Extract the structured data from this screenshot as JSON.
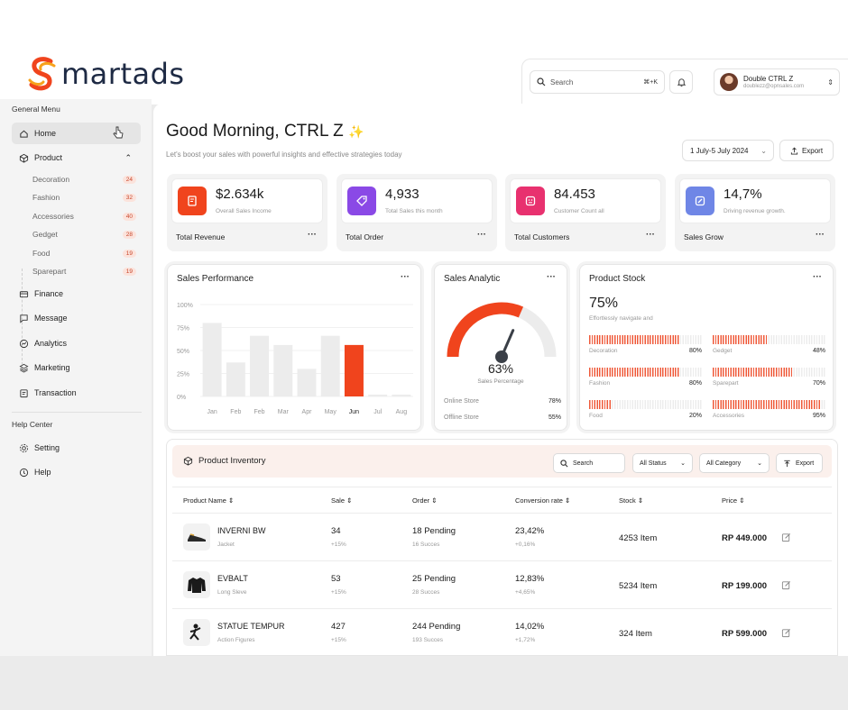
{
  "brand": {
    "logo_text": "martads"
  },
  "topbar": {
    "search_placeholder": "Search",
    "search_shortcut": "⌘+K",
    "user_name": "Double CTRL Z",
    "user_email": "doublezz@opnsales.com"
  },
  "sidebar": {
    "general_title": "General Menu",
    "items": [
      {
        "label": "Home"
      },
      {
        "label": "Product"
      },
      {
        "label": "Finance"
      },
      {
        "label": "Message"
      },
      {
        "label": "Analytics"
      },
      {
        "label": "Marketing"
      },
      {
        "label": "Transaction"
      }
    ],
    "product_sub": [
      {
        "label": "Decoration",
        "count": "24"
      },
      {
        "label": "Fashion",
        "count": "32"
      },
      {
        "label": "Accessories",
        "count": "40"
      },
      {
        "label": "Gedget",
        "count": "28"
      },
      {
        "label": "Food",
        "count": "19"
      },
      {
        "label": "Sparepart",
        "count": "19"
      }
    ],
    "help_title": "Help Center",
    "help_items": [
      {
        "label": "Setting"
      },
      {
        "label": "Help"
      }
    ]
  },
  "header": {
    "greeting": "Good Morning, CTRL Z",
    "sparkle": "✨",
    "subtitle": "Let's boost your sales with powerful insights and effective strategies today",
    "date_range": "1 July-5 July 2024",
    "export_label": "Export"
  },
  "kpis": [
    {
      "value": "$2.634k",
      "desc": "Overall Sales Income",
      "label": "Total Revenue",
      "color": "#f0441d"
    },
    {
      "value": "4,933",
      "desc": "Total Sales this month",
      "label": "Total Order",
      "color": "#8a49e6"
    },
    {
      "value": "84.453",
      "desc": "Customer Count all",
      "label": "Total Customers",
      "color": "#e8316f"
    },
    {
      "value": "14,7%",
      "desc": "Driving revenue growth.",
      "label": "Sales Grow",
      "color": "#6f86e6"
    }
  ],
  "sales_performance": {
    "title": "Sales Performance"
  },
  "chart_data": {
    "type": "bar",
    "categories": [
      "Jan",
      "Feb",
      "Feb",
      "Mar",
      "Apr",
      "May",
      "Jun",
      "Jul",
      "Aug"
    ],
    "values": [
      80,
      37,
      66,
      56,
      30,
      66,
      56,
      2,
      2
    ],
    "highlight_index": 6,
    "ylim": [
      0,
      100
    ],
    "yticks": [
      "100%",
      "75%",
      "50%",
      "25%",
      "0%"
    ],
    "grid": true,
    "colors": {
      "bar": "#ececec",
      "highlight": "#f0441d"
    }
  },
  "sales_analytic": {
    "title": "Sales Analytic",
    "percent": "63%",
    "percent_value": 63,
    "sub": "Sales Percentage",
    "rows": [
      {
        "label": "Online Store",
        "value": "78%"
      },
      {
        "label": "Offline Store",
        "value": "55%"
      }
    ]
  },
  "product_stock": {
    "title": "Product Stock",
    "big": "75%",
    "sub": "Effortlessly navigate and",
    "items": [
      {
        "label": "Decoration",
        "value": "80%",
        "fraction": 0.8
      },
      {
        "label": "Gedget",
        "value": "48%",
        "fraction": 0.48
      },
      {
        "label": "Fashion",
        "value": "80%",
        "fraction": 0.8
      },
      {
        "label": "Sparepart",
        "value": "70%",
        "fraction": 0.7
      },
      {
        "label": "Food",
        "value": "20%",
        "fraction": 0.2
      },
      {
        "label": "Accessories",
        "value": "95%",
        "fraction": 0.95
      }
    ]
  },
  "inventory": {
    "title": "Product Inventory",
    "search": "Search",
    "status": "All Status",
    "category": "All Category",
    "export": "Export",
    "columns": [
      "Product Name",
      "Sale",
      "Order",
      "Conversion rate",
      "Stock",
      "Price"
    ],
    "rows": [
      {
        "name": "INVERNI BW",
        "cat": "Jacket",
        "sale": "34",
        "sale_sub": "+15%",
        "order": "18 Pending",
        "order_sub": "16 Succes",
        "conv": "23,42%",
        "conv_sub": "+0,16%",
        "stock": "4253 Item",
        "price": "RP 449.000"
      },
      {
        "name": "EVBALT",
        "cat": "Long Sleve",
        "sale": "53",
        "sale_sub": "+15%",
        "order": "25 Pending",
        "order_sub": "28 Succes",
        "conv": "12,83%",
        "conv_sub": "+4,65%",
        "stock": "5234 Item",
        "price": "RP 199.000"
      },
      {
        "name": "STATUE TEMPUR",
        "cat": "Action Figures",
        "sale": "427",
        "sale_sub": "+15%",
        "order": "244 Pending",
        "order_sub": "193 Succes",
        "conv": "14,02%",
        "conv_sub": "+1,72%",
        "stock": "324 Item",
        "price": "RP 599.000"
      }
    ]
  }
}
